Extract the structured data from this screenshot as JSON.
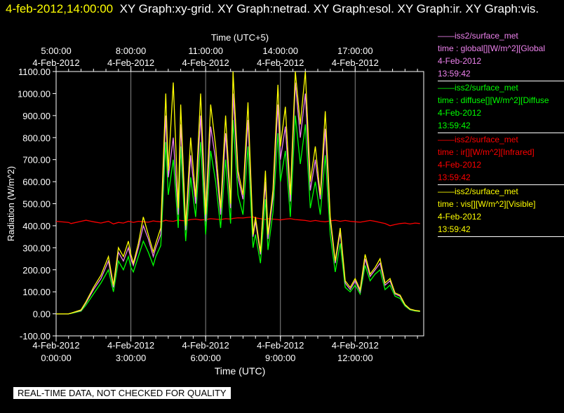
{
  "header": {
    "timestamp": "4-feb-2012,14:00:00",
    "graphs": "XY Graph:xy-grid.  XY Graph:netrad.  XY Graph:esol.  XY Graph:ir.  XY Graph:vis."
  },
  "legend": [
    {
      "station": "iss2/surface_met",
      "var": "time : global[][W/m^2][Global",
      "date": "4-Feb-2012",
      "time": "13:59:42",
      "color": "#ee82ee"
    },
    {
      "station": "iss2/surface_met",
      "var": "time : diffuse[][W/m^2][Diffuse",
      "date": "4-Feb-2012",
      "time": "13:59:42",
      "color": "#00ff00"
    },
    {
      "station": "iss2/surface_met",
      "var": "time : ir[][W/m^2][Infrared]",
      "date": "4-Feb-2012",
      "time": "13:59:42",
      "color": "#ff0000"
    },
    {
      "station": "iss2/surface_met",
      "var": "time : vis[][W/m^2][Visible]",
      "date": "4-Feb-2012",
      "time": "13:59:42",
      "color": "#ffff00"
    }
  ],
  "quality_note": "REAL-TIME DATA, NOT CHECKED FOR QUALITY",
  "chart_data": {
    "type": "line",
    "xlabel_bottom": "Time (UTC)",
    "xlabel_top": "Time (UTC+5)",
    "ylabel": "Radiation (W/m^2)",
    "xlim_hours": [
      0,
      14.75
    ],
    "ylim": [
      -100,
      1100
    ],
    "yticks": [
      "-100.00",
      "0.00",
      "100.00",
      "200.00",
      "300.00",
      "400.00",
      "500.00",
      "600.00",
      "700.00",
      "800.00",
      "900.00",
      "1000.00",
      "1100.00"
    ],
    "bottom_ticks": [
      {
        "hour": 0,
        "date": "4-Feb-2012",
        "time": "0:00:00"
      },
      {
        "hour": 3,
        "date": "4-Feb-2012",
        "time": "3:00:00"
      },
      {
        "hour": 6,
        "date": "4-Feb-2012",
        "time": "6:00:00"
      },
      {
        "hour": 9,
        "date": "4-Feb-2012",
        "time": "9:00:00"
      },
      {
        "hour": 12,
        "date": "4-Feb-2012",
        "time": "12:00:00"
      }
    ],
    "top_ticks": [
      {
        "hour": 0,
        "date": "4-Feb-2012",
        "time": "5:00:00"
      },
      {
        "hour": 3,
        "date": "4-Feb-2012",
        "time": "8:00:00"
      },
      {
        "hour": 6,
        "date": "4-Feb-2012",
        "time": "11:00:00"
      },
      {
        "hour": 9,
        "date": "4-Feb-2012",
        "time": "14:00:00"
      },
      {
        "hour": 12,
        "date": "4-Feb-2012",
        "time": "17:00:00"
      }
    ],
    "x_hours": [
      0,
      0.5,
      0.6,
      1.0,
      1.2,
      1.5,
      1.8,
      2.1,
      2.3,
      2.5,
      2.7,
      2.9,
      3.0,
      3.1,
      3.3,
      3.5,
      3.7,
      3.9,
      4.0,
      4.2,
      4.4,
      4.5,
      4.7,
      4.9,
      5.0,
      5.2,
      5.4,
      5.6,
      5.8,
      6.0,
      6.2,
      6.4,
      6.6,
      6.8,
      7.0,
      7.1,
      7.3,
      7.5,
      7.7,
      7.9,
      8.0,
      8.2,
      8.4,
      8.5,
      8.7,
      8.9,
      9.0,
      9.2,
      9.4,
      9.6,
      9.8,
      10.0,
      10.2,
      10.4,
      10.6,
      10.8,
      11.0,
      11.2,
      11.4,
      11.6,
      11.8,
      12.0,
      12.2,
      12.4,
      12.6,
      12.8,
      13.0,
      13.2,
      13.4,
      13.6,
      13.8,
      14.0,
      14.2,
      14.4,
      14.6
    ],
    "series": [
      {
        "name": "global",
        "color": "#ee82ee",
        "values": [
          0,
          0,
          3,
          15,
          50,
          110,
          160,
          240,
          120,
          280,
          240,
          300,
          250,
          220,
          300,
          400,
          340,
          260,
          300,
          360,
          900,
          620,
          800,
          450,
          860,
          380,
          720,
          500,
          900,
          420,
          850,
          700,
          450,
          820,
          480,
          1000,
          620,
          520,
          880,
          350,
          420,
          270,
          600,
          340,
          530,
          950,
          700,
          850,
          510,
          1050,
          800,
          1000,
          560,
          700,
          520,
          840,
          420,
          230,
          370,
          140,
          110,
          150,
          100,
          250,
          170,
          200,
          230,
          130,
          150,
          90,
          80,
          40,
          20,
          15,
          12
        ]
      },
      {
        "name": "diffuse",
        "color": "#00ff00",
        "values": [
          0,
          0,
          2,
          12,
          40,
          90,
          140,
          200,
          100,
          240,
          200,
          260,
          210,
          190,
          260,
          330,
          280,
          220,
          260,
          310,
          780,
          540,
          700,
          390,
          760,
          330,
          620,
          440,
          780,
          360,
          740,
          600,
          390,
          700,
          410,
          880,
          540,
          450,
          760,
          300,
          360,
          230,
          520,
          290,
          460,
          820,
          600,
          740,
          440,
          900,
          680,
          860,
          480,
          600,
          450,
          720,
          360,
          190,
          320,
          120,
          100,
          130,
          90,
          220,
          150,
          180,
          200,
          110,
          130,
          80,
          70,
          35,
          18,
          13,
          10
        ]
      },
      {
        "name": "ir",
        "color": "#ff0000",
        "values": [
          420,
          415,
          410,
          420,
          425,
          418,
          412,
          420,
          408,
          415,
          412,
          420,
          418,
          415,
          420,
          418,
          416,
          422,
          420,
          418,
          425,
          422,
          420,
          426,
          424,
          422,
          428,
          430,
          426,
          428,
          432,
          430,
          428,
          432,
          430,
          433,
          436,
          435,
          438,
          440,
          436,
          432,
          428,
          432,
          430,
          428,
          426,
          430,
          432,
          428,
          426,
          424,
          420,
          424,
          420,
          418,
          422,
          425,
          420,
          424,
          420,
          418,
          416,
          420,
          424,
          420,
          415,
          410,
          400,
          405,
          410,
          412,
          408,
          412,
          410
        ]
      },
      {
        "name": "vis",
        "color": "#ffff00",
        "values": [
          0,
          0,
          3,
          18,
          55,
          120,
          175,
          260,
          130,
          300,
          260,
          330,
          270,
          230,
          320,
          440,
          360,
          280,
          320,
          390,
          1000,
          650,
          1050,
          480,
          950,
          400,
          800,
          530,
          1000,
          450,
          950,
          760,
          480,
          900,
          500,
          1100,
          650,
          540,
          960,
          360,
          440,
          280,
          650,
          360,
          560,
          1040,
          760,
          940,
          540,
          1100,
          860,
          1100,
          600,
          760,
          540,
          920,
          440,
          240,
          390,
          150,
          120,
          160,
          110,
          270,
          180,
          210,
          250,
          140,
          160,
          95,
          85,
          42,
          22,
          16,
          13
        ]
      }
    ]
  }
}
